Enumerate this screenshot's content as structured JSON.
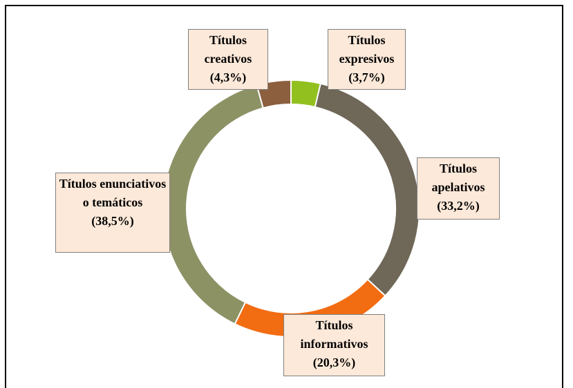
{
  "chart_data": {
    "type": "donut",
    "categories": [
      "Títulos expresivos",
      "Títulos apelativos",
      "Títulos informativos",
      "Títulos enunciativos o temáticos",
      "Títulos creativos"
    ],
    "values": [
      3.7,
      33.2,
      20.3,
      38.5,
      4.3
    ],
    "value_labels": [
      "(3,7%)",
      "(33,2%)",
      "(20,3%)",
      "(38,5%)",
      "(4,3%)"
    ],
    "colors": [
      "#92c01f",
      "#6f6757",
      "#f26c12",
      "#8d9265",
      "#8c5f3e"
    ]
  }
}
